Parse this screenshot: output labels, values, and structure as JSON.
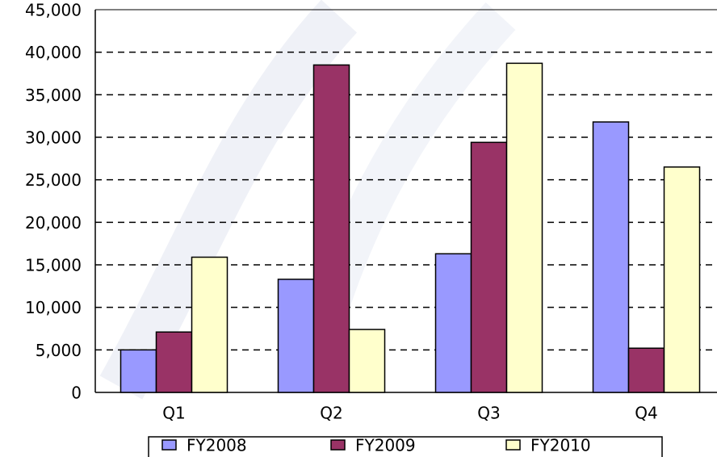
{
  "chart_data": {
    "type": "bar",
    "categories": [
      "Q1",
      "Q2",
      "Q3",
      "Q4"
    ],
    "series": [
      {
        "name": "FY2008",
        "color": "#9999ff",
        "values": [
          5000,
          13300,
          16300,
          31800
        ]
      },
      {
        "name": "FY2009",
        "color": "#993366",
        "values": [
          7100,
          38500,
          29400,
          5200
        ]
      },
      {
        "name": "FY2010",
        "color": "#ffffcc",
        "values": [
          15900,
          7400,
          38700,
          26500
        ]
      }
    ],
    "ylim": [
      0,
      45000
    ],
    "yticks": [
      0,
      {
        "value": 5000,
        "label": "5,000"
      },
      {
        "value": 10000,
        "label": "10,000"
      },
      {
        "value": 15000,
        "label": "15,000"
      },
      {
        "value": 20000,
        "label": "20,000"
      },
      {
        "value": 25000,
        "label": "25,000"
      },
      {
        "value": 30000,
        "label": "30,000"
      },
      {
        "value": 35000,
        "label": "35,000"
      },
      {
        "value": 40000,
        "label": "40,000"
      },
      {
        "value": 45000,
        "label": "45,000"
      }
    ],
    "grid": true,
    "legend": "bottom"
  }
}
